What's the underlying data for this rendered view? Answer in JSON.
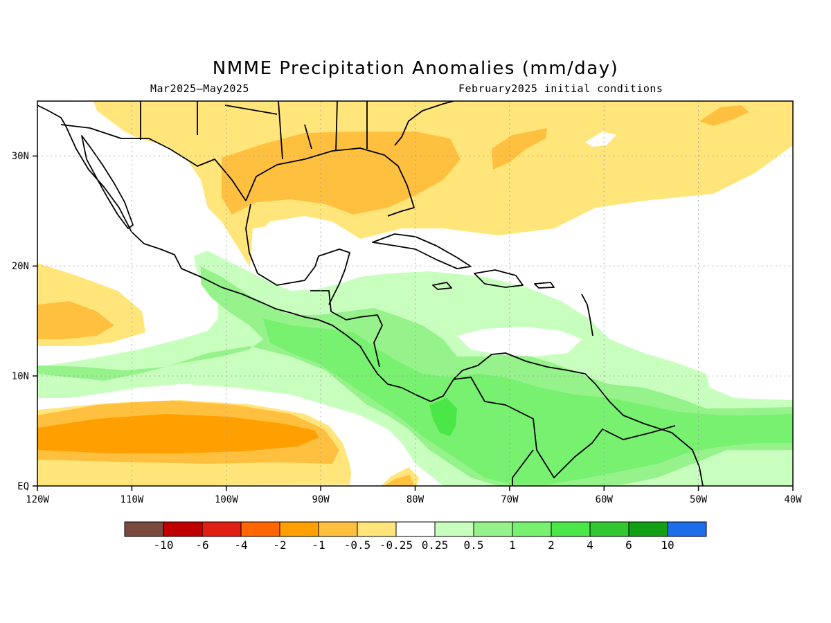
{
  "title": "NMME Precipitation Anomalies (mm/day)",
  "subtitle_left": "Mar2025–May2025",
  "subtitle_right": "February2025 initial conditions",
  "axes": {
    "lon_ticks": [
      "120W",
      "110W",
      "100W",
      "90W",
      "80W",
      "70W",
      "60W",
      "50W",
      "40W"
    ],
    "lat_ticks": [
      "30N",
      "20N",
      "10N",
      "EQ"
    ],
    "lon_range": [
      -120,
      -40
    ],
    "lat_range": [
      0,
      35
    ],
    "grid": "dotted"
  },
  "legend": {
    "labels": [
      "-10",
      "-6",
      "-4",
      "-2",
      "-1",
      "-0.5",
      "-0.25",
      "0.25",
      "0.5",
      "1",
      "2",
      "4",
      "6",
      "10"
    ],
    "colors": [
      "#7a4a3f",
      "#c00000",
      "#e11f12",
      "#ff6600",
      "#ffa000",
      "#ffc040",
      "#ffe57a",
      "#ffffff",
      "#c8ffbe",
      "#96f28a",
      "#78f070",
      "#4be648",
      "#32c832",
      "#14a014",
      "#1e6eeb"
    ]
  },
  "colors": {
    "dry_light": "#ffe57a",
    "dry_mid": "#ffc040",
    "dry_strong": "#ffa000",
    "wet_light": "#c8ffbe",
    "wet_mid": "#96f28a",
    "wet_strong": "#78f070",
    "wet_peak": "#4be648"
  }
}
